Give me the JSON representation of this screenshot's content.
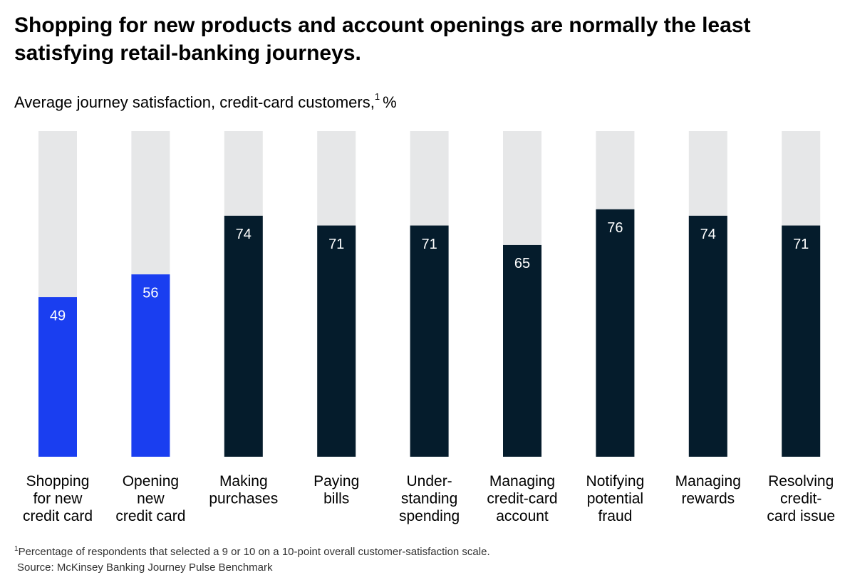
{
  "chart_data": {
    "type": "bar",
    "title": "Shopping for new products and account openings are normally the least satisfying retail-banking journeys.",
    "subtitle": "Average journey satisfaction, credit-card customers,",
    "subtitle_marker": "1",
    "unit": "%",
    "categories": [
      [
        "Shopping",
        "for new",
        "credit card"
      ],
      [
        "Opening",
        "new",
        "credit card"
      ],
      [
        "Making",
        "purchases"
      ],
      [
        "Paying",
        "bills"
      ],
      [
        "Under-",
        "standing",
        "spending"
      ],
      [
        "Managing",
        "credit-card",
        "account"
      ],
      [
        "Notifying",
        "potential",
        "fraud"
      ],
      [
        "Managing",
        "rewards"
      ],
      [
        "Resolving",
        "credit-",
        "card issue"
      ]
    ],
    "values": [
      49,
      56,
      74,
      71,
      71,
      65,
      76,
      74,
      71
    ],
    "colors": [
      "#1a3ef0",
      "#1a3ef0",
      "#051c2c",
      "#051c2c",
      "#051c2c",
      "#051c2c",
      "#051c2c",
      "#051c2c",
      "#051c2c"
    ],
    "track_color": "#e6e7e8",
    "ylim": [
      0,
      100
    ],
    "footnote_marker": "1",
    "footnote": "Percentage of respondents that selected a 9 or 10 on a 10-point overall customer-satisfaction scale.",
    "source": "Source: McKinsey Banking Journey Pulse Benchmark"
  }
}
